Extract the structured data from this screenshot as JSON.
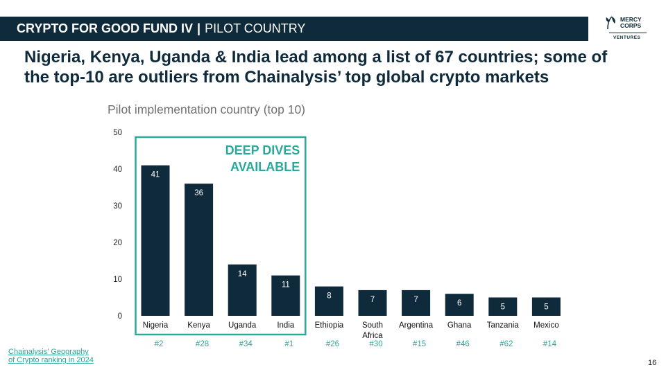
{
  "header": {
    "title": "CRYPTO FOR GOOD FUND IV",
    "separator": "|",
    "subtitle": "PILOT COUNTRY"
  },
  "logo": {
    "line1": "MERCY",
    "line2": "CORPS",
    "line3": "VENTURES"
  },
  "headline": "Nigeria, Kenya, Uganda & India lead among a list of 67 countries; some of the top-10 are outliers from Chainalysis’ top global crypto markets",
  "chart_data": {
    "type": "bar",
    "title": "Pilot implementation country (top 10)",
    "categories": [
      "Nigeria",
      "Kenya",
      "Uganda",
      "India",
      "Ethiopia",
      "South Africa",
      "Argentina",
      "Ghana",
      "Tanzania",
      "Mexico"
    ],
    "values": [
      41,
      36,
      14,
      11,
      8,
      7,
      7,
      6,
      5,
      5
    ],
    "ranks": [
      "#2",
      "#28",
      "#34",
      "#1",
      "#26",
      "#30",
      "#15",
      "#46",
      "#62",
      "#14"
    ],
    "ylim": [
      0,
      50
    ],
    "yticks": [
      0,
      10,
      20,
      30,
      40,
      50
    ],
    "grid": false,
    "annotation": {
      "text_line1": "DEEP DIVES",
      "text_line2": "AVAILABLE",
      "highlighted_categories": [
        "Nigeria",
        "Kenya",
        "Uganda",
        "India"
      ]
    }
  },
  "colors": {
    "bar": "#0e2a3b",
    "header_bg": "#0e2a3b",
    "accent": "#2aa89a",
    "value_label": "#ffffff"
  },
  "footnote": "Chainalysis’ Geography\nof Crypto ranking in 2024",
  "page_number": "16"
}
